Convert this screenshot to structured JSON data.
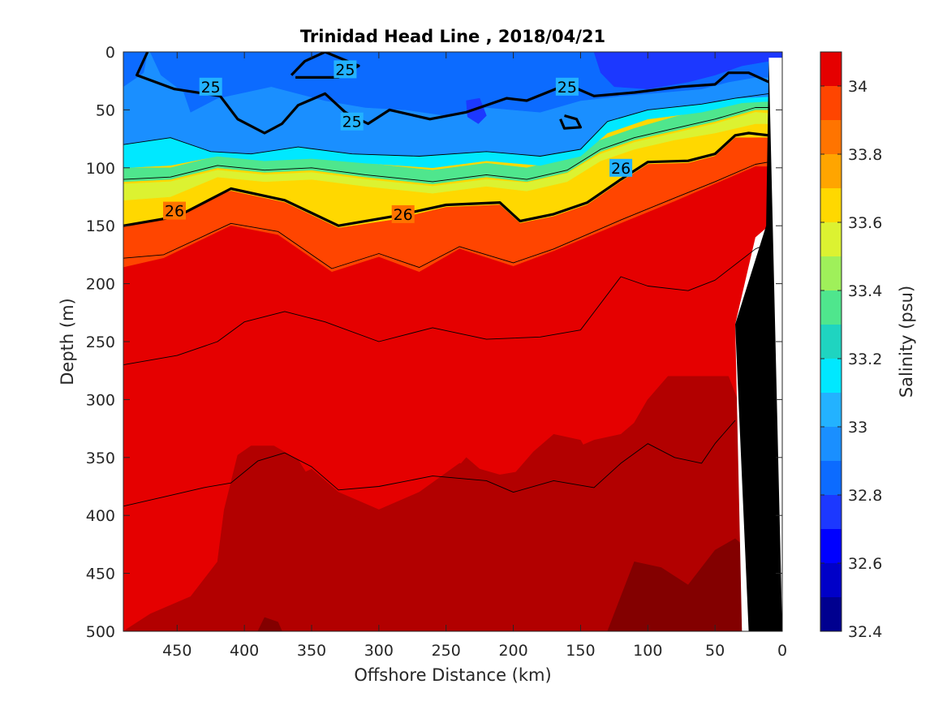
{
  "chart_data": {
    "type": "contour",
    "title": "Trinidad Head Line , 2018/04/21",
    "xlabel": "Offshore Distance (km)",
    "ylabel": "Depth (m)",
    "xlim": [
      490,
      0
    ],
    "ylim": [
      0,
      500
    ],
    "x_reversed": true,
    "y_reversed": true,
    "x_ticks": [
      450,
      400,
      350,
      300,
      250,
      200,
      150,
      100,
      50,
      0
    ],
    "y_ticks": [
      0,
      50,
      100,
      150,
      200,
      250,
      300,
      350,
      400,
      450,
      500
    ],
    "colorbar": {
      "label": "Salinity (psu)",
      "range": [
        32.4,
        34.1
      ],
      "ticks": [
        32.4,
        32.6,
        32.8,
        33.0,
        33.2,
        33.4,
        33.6,
        33.8,
        34.0
      ],
      "tick_labels": [
        "32.4",
        "32.6",
        "32.8",
        "33",
        "33.2",
        "33.4",
        "33.6",
        "33.8",
        "34"
      ],
      "levels": [
        32.4,
        32.5,
        32.6,
        32.7,
        32.8,
        32.9,
        33.0,
        33.1,
        33.2,
        33.3,
        33.4,
        33.5,
        33.6,
        33.7,
        33.8,
        33.9,
        34.0,
        34.1
      ],
      "colors": [
        "#00008f",
        "#0000c8",
        "#0000ff",
        "#1c38ff",
        "#0c6bff",
        "#1a8fff",
        "#23b2ff",
        "#00e8ff",
        "#1fd4c0",
        "#4fe68d",
        "#9ff05a",
        "#dcf231",
        "#ffd800",
        "#ffa500",
        "#ff7400",
        "#ff4500",
        "#e50000",
        "#b20000",
        "#830000"
      ]
    },
    "salinity_regions_psu": [
      {
        "value": 32.8,
        "note": "upper layer 0-60 m"
      },
      {
        "value": 32.6,
        "note": "nearshore surface 0-40 m, x < 140 km"
      },
      {
        "value": 33.5,
        "note": "halocline band 90-140 m"
      },
      {
        "value": 33.8,
        "note": "layer 150-200 m"
      },
      {
        "value": 33.95,
        "note": "deep layer 200-500 m"
      },
      {
        "value": 34.05,
        "note": "deep offshore patch 350-500 m, and inshore 280-500 m"
      }
    ],
    "density_contours": [
      {
        "label": "25",
        "emphasis": "thick",
        "segments": [
          [
            [
              472,
              0
            ],
            [
              480,
              20
            ],
            [
              452,
              32
            ],
            [
              418,
              38
            ],
            [
              405,
              58
            ],
            [
              385,
              70
            ],
            [
              372,
              62
            ],
            [
              360,
              46
            ],
            [
              340,
              36
            ],
            [
              325,
              52
            ],
            [
              308,
              62
            ],
            [
              292,
              50
            ],
            [
              262,
              58
            ],
            [
              235,
              52
            ],
            [
              205,
              40
            ],
            [
              190,
              42
            ],
            [
              160,
              28
            ],
            [
              140,
              38
            ],
            [
              110,
              35
            ],
            [
              75,
              30
            ],
            [
              50,
              28
            ],
            [
              40,
              18
            ],
            [
              25,
              18
            ],
            [
              10,
              26
            ]
          ],
          [
            [
              365,
              20
            ],
            [
              355,
              8
            ],
            [
              340,
              0
            ],
            [
              315,
              12
            ],
            [
              330,
              22
            ],
            [
              362,
              22
            ]
          ],
          [
            [
              162,
              55
            ],
            [
              153,
              58
            ],
            [
              150,
              65
            ],
            [
              162,
              66
            ],
            [
              165,
              58
            ]
          ]
        ],
        "label_positions": [
          [
            425,
            30
          ],
          [
            320,
            60
          ],
          [
            160,
            30
          ],
          [
            325,
            15
          ]
        ]
      },
      {
        "label": "26",
        "emphasis": "thick",
        "segments": [
          [
            [
              490,
              150
            ],
            [
              450,
              142
            ],
            [
              410,
              118
            ],
            [
              370,
              128
            ],
            [
              330,
              150
            ],
            [
              290,
              142
            ],
            [
              250,
              132
            ],
            [
              210,
              130
            ],
            [
              195,
              146
            ],
            [
              170,
              140
            ],
            [
              145,
              130
            ],
            [
              120,
              110
            ],
            [
              100,
              95
            ],
            [
              70,
              94
            ],
            [
              50,
              88
            ],
            [
              35,
              72
            ],
            [
              25,
              70
            ],
            [
              10,
              72
            ]
          ]
        ],
        "label_positions": [
          [
            452,
            137
          ],
          [
            282,
            140
          ],
          [
            120,
            100
          ]
        ]
      },
      {
        "label": "",
        "emphasis": "thin",
        "segments": [
          [
            [
              490,
              80
            ],
            [
              455,
              74
            ],
            [
              425,
              86
            ],
            [
              395,
              88
            ],
            [
              360,
              82
            ],
            [
              320,
              88
            ],
            [
              270,
              90
            ],
            [
              220,
              86
            ],
            [
              180,
              90
            ],
            [
              150,
              84
            ],
            [
              130,
              60
            ],
            [
              100,
              50
            ],
            [
              60,
              45
            ],
            [
              35,
              40
            ],
            [
              10,
              36
            ]
          ],
          [
            [
              490,
              110
            ],
            [
              455,
              108
            ],
            [
              420,
              98
            ],
            [
              385,
              102
            ],
            [
              350,
              100
            ],
            [
              310,
              106
            ],
            [
              260,
              112
            ],
            [
              220,
              106
            ],
            [
              190,
              110
            ],
            [
              160,
              102
            ],
            [
              135,
              84
            ],
            [
              110,
              74
            ],
            [
              80,
              66
            ],
            [
              50,
              58
            ],
            [
              20,
              48
            ],
            [
              10,
              48
            ]
          ],
          [
            [
              490,
              178
            ],
            [
              460,
              175
            ],
            [
              410,
              148
            ],
            [
              375,
              155
            ],
            [
              335,
              187
            ],
            [
              300,
              174
            ],
            [
              270,
              186
            ],
            [
              240,
              168
            ],
            [
              200,
              182
            ],
            [
              170,
              170
            ],
            [
              120,
              145
            ],
            [
              80,
              126
            ],
            [
              50,
              112
            ],
            [
              20,
              97
            ],
            [
              10,
              95
            ]
          ],
          [
            [
              490,
              270
            ],
            [
              450,
              262
            ],
            [
              420,
              250
            ],
            [
              400,
              233
            ],
            [
              370,
              224
            ],
            [
              340,
              233
            ],
            [
              300,
              250
            ],
            [
              260,
              238
            ],
            [
              220,
              248
            ],
            [
              180,
              246
            ],
            [
              150,
              240
            ],
            [
              120,
              194
            ],
            [
              100,
              202
            ],
            [
              70,
              206
            ],
            [
              50,
              197
            ],
            [
              20,
              170
            ],
            [
              10,
              165
            ]
          ],
          [
            [
              490,
              392
            ],
            [
              460,
              384
            ],
            [
              430,
              376
            ],
            [
              410,
              372
            ],
            [
              390,
              353
            ],
            [
              370,
              346
            ],
            [
              350,
              358
            ],
            [
              330,
              378
            ],
            [
              300,
              375
            ],
            [
              260,
              366
            ],
            [
              220,
              370
            ],
            [
              200,
              380
            ],
            [
              170,
              370
            ],
            [
              140,
              376
            ],
            [
              120,
              355
            ],
            [
              100,
              338
            ],
            [
              80,
              350
            ],
            [
              60,
              355
            ],
            [
              50,
              338
            ],
            [
              35,
              318
            ]
          ]
        ],
        "label_positions": []
      }
    ],
    "bathymetry": {
      "fill": "#000000",
      "points": [
        [
          10,
          5
        ],
        [
          0,
          500
        ],
        [
          25,
          500
        ],
        [
          35,
          235
        ],
        [
          12,
          150
        ],
        [
          10,
          5
        ]
      ]
    }
  }
}
